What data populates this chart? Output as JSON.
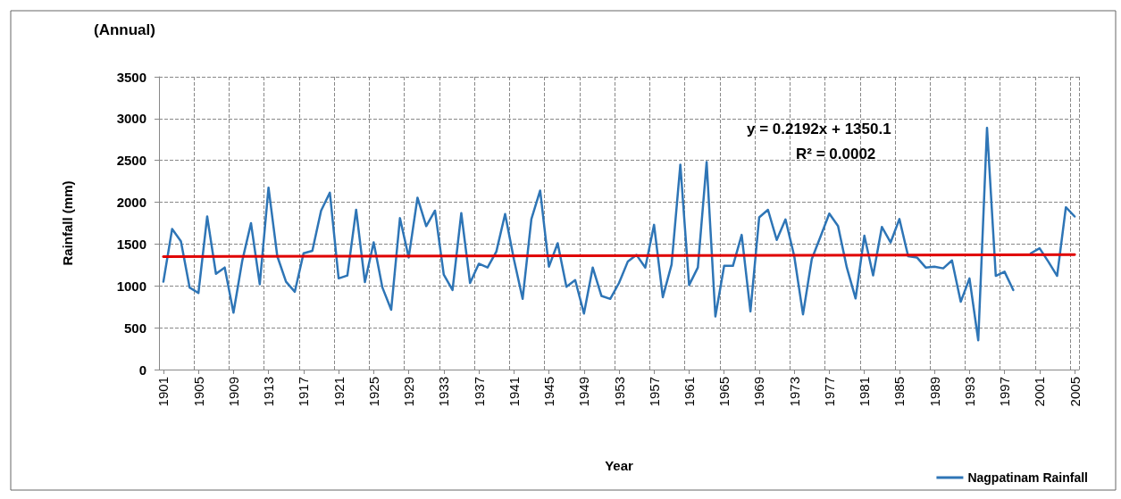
{
  "chart_data": {
    "type": "line",
    "title": "(Annual)",
    "xlabel": "Year",
    "ylabel": "Rainfall (mm)",
    "categories": [
      "1901",
      null,
      null,
      null,
      "1905",
      null,
      null,
      null,
      "1909",
      null,
      null,
      null,
      "1913",
      null,
      null,
      null,
      "1917",
      null,
      null,
      null,
      "1921",
      null,
      null,
      null,
      "1925",
      null,
      null,
      null,
      "1929",
      null,
      null,
      null,
      "1933",
      null,
      null,
      null,
      "1937",
      null,
      null,
      null,
      "1941",
      null,
      null,
      null,
      "1945",
      null,
      null,
      null,
      "1949",
      null,
      null,
      null,
      "1953",
      null,
      null,
      null,
      "1957",
      null,
      null,
      null,
      "1961",
      null,
      null,
      null,
      "1965",
      null,
      null,
      null,
      "1969",
      null,
      null,
      null,
      "1973",
      null,
      null,
      null,
      "1977",
      null,
      null,
      null,
      "1981",
      null,
      null,
      null,
      "1985",
      null,
      null,
      null,
      "1989",
      null,
      null,
      null,
      "1993",
      null,
      null,
      null,
      "1997",
      null,
      null,
      null,
      "2001",
      null,
      null,
      null,
      "2005"
    ],
    "series": [
      {
        "name": "Nagpatinam Rainfall",
        "color": "#2e75b6",
        "values": [
          1050,
          1680,
          1535,
          980,
          915,
          1830,
          1145,
          1220,
          680,
          1300,
          1750,
          1020,
          2175,
          1355,
          1050,
          930,
          1390,
          1420,
          1900,
          2115,
          1090,
          1125,
          1910,
          1045,
          1520,
          980,
          715,
          1810,
          1340,
          2055,
          1715,
          1900,
          1135,
          950,
          1870,
          1035,
          1265,
          1220,
          1410,
          1860,
          1320,
          845,
          1800,
          2140,
          1230,
          1510,
          990,
          1070,
          670,
          1220,
          880,
          845,
          1035,
          1290,
          1370,
          1220,
          1730,
          865,
          1255,
          2450,
          1010,
          1220,
          2480,
          635,
          1240,
          1240,
          1610,
          695,
          1820,
          1910,
          1550,
          1795,
          1355,
          660,
          1320,
          1590,
          1865,
          1715,
          1220,
          850,
          1600,
          1125,
          1705,
          1520,
          1800,
          1355,
          1340,
          1220,
          1230,
          1210,
          1305,
          810,
          1090,
          350,
          2890,
          1120,
          1170,
          950,
          null,
          1390,
          1450,
          1290,
          1120,
          1940,
          1830
        ]
      },
      {
        "type": "line",
        "color": "#e00000",
        "values": [
          1350,
          null,
          null,
          null,
          null,
          null,
          null,
          null,
          null,
          null,
          null,
          null,
          null,
          null,
          null,
          null,
          null,
          null,
          null,
          null,
          null,
          null,
          null,
          null,
          null,
          null,
          null,
          null,
          null,
          null,
          null,
          null,
          null,
          null,
          null,
          null,
          null,
          null,
          null,
          null,
          null,
          null,
          null,
          null,
          null,
          null,
          null,
          null,
          null,
          null,
          null,
          null,
          null,
          null,
          null,
          null,
          null,
          null,
          null,
          null,
          null,
          null,
          null,
          null,
          null,
          null,
          null,
          null,
          null,
          null,
          null,
          null,
          null,
          null,
          null,
          null,
          null,
          null,
          null,
          null,
          null,
          null,
          null,
          null,
          null,
          null,
          null,
          null,
          null,
          null,
          null,
          null,
          null,
          null,
          null,
          null,
          null,
          null,
          null,
          null,
          null,
          null,
          null,
          null,
          1373
        ]
      }
    ],
    "ylim": [
      0,
      3500
    ],
    "yticks": [
      0,
      500,
      1000,
      1500,
      2000,
      2500,
      3000,
      3500
    ],
    "grid": true,
    "legend": "bottom right",
    "marker": "none",
    "line_style": "solid",
    "annotations": [
      "y = 0.2192x + 1350.1",
      "R² = 0.0002"
    ]
  }
}
